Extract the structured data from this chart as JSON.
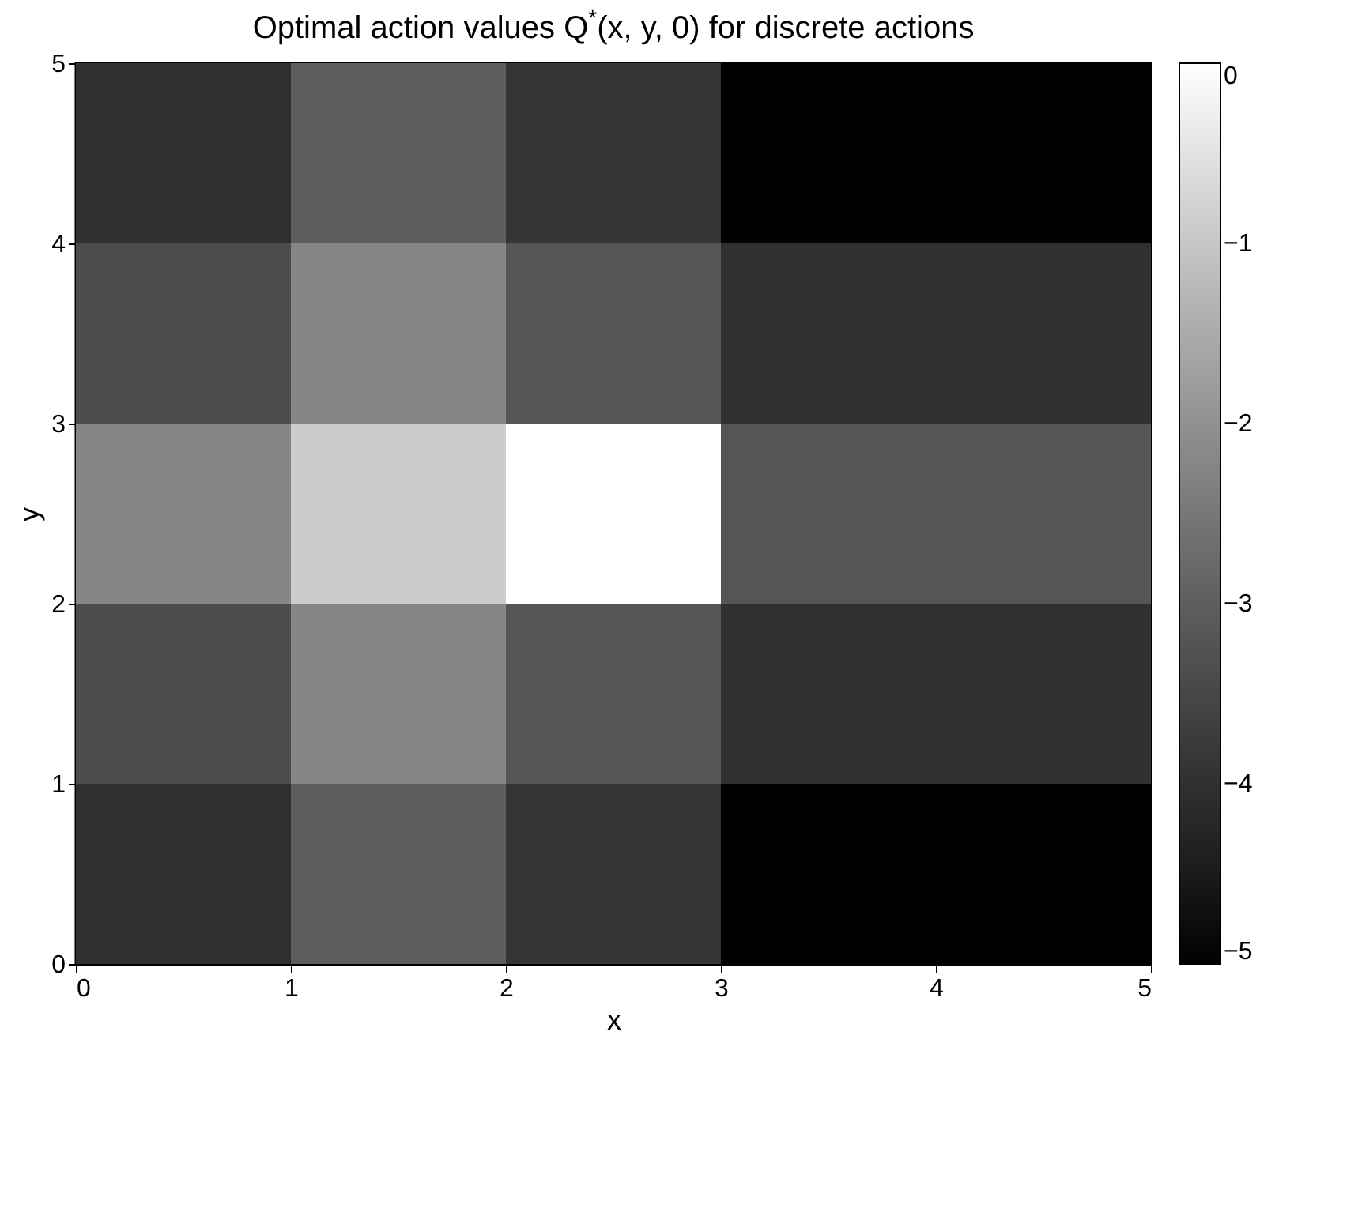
{
  "chart_data": {
    "type": "heatmap",
    "title": "Optimal action values Q$^{*}$(x, y, 0) for discrete actions",
    "xlabel": "x",
    "ylabel": "y",
    "xlim": [
      0,
      5
    ],
    "xticks": [
      0,
      1,
      2,
      3,
      4,
      5
    ],
    "ylim": [
      0,
      5
    ],
    "yticks": [
      0,
      1,
      2,
      3,
      4,
      5
    ],
    "cells": [
      [
        -4.0,
        -3.0,
        -3.9,
        -5.0,
        -5.0
      ],
      [
        -3.4,
        -2.2,
        -3.2,
        -4.0,
        -4.0
      ],
      [
        -2.2,
        -0.9,
        0.0,
        -3.2,
        -3.2
      ],
      [
        -3.4,
        -2.2,
        -3.2,
        -4.0,
        -4.0
      ],
      [
        -4.0,
        -3.0,
        -3.9,
        -5.0,
        -5.0
      ]
    ],
    "clim": [
      -5,
      0
    ],
    "cticks": [
      -5,
      -4,
      -3,
      -2,
      -1,
      0
    ],
    "grid": false
  }
}
